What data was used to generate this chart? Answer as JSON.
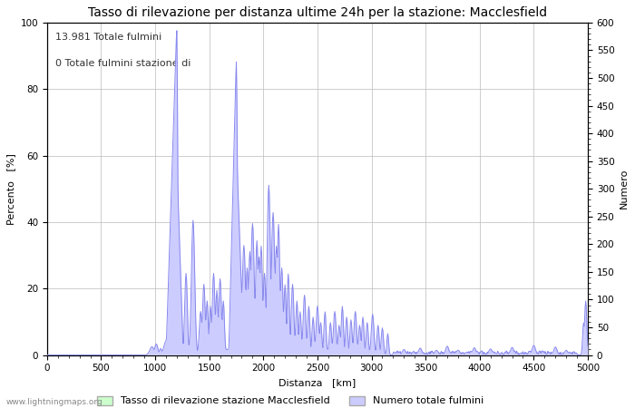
{
  "title": "Tasso di rilevazione per distanza ultime 24h per la stazione: Macclesfield",
  "xlabel": "Distanza   [km]",
  "ylabel_left": "Percento   [%]",
  "ylabel_right": "Numero",
  "annotation_line1": "13.981 Totale fulmini",
  "annotation_line2": "0 Totale fulmini stazione di",
  "xlim": [
    0,
    5000
  ],
  "ylim_left": [
    0,
    100
  ],
  "ylim_right": [
    0,
    600
  ],
  "xticks": [
    0,
    500,
    1000,
    1500,
    2000,
    2500,
    3000,
    3500,
    4000,
    4500,
    5000
  ],
  "yticks_left": [
    0,
    20,
    40,
    60,
    80,
    100
  ],
  "yticks_right": [
    0,
    50,
    100,
    150,
    200,
    250,
    300,
    350,
    400,
    450,
    500,
    550,
    600
  ],
  "legend_label_green": "Tasso di rilevazione stazione Macclesfield",
  "legend_label_blue": "Numero totale fulmini",
  "watermark": "www.lightningmaps.org",
  "line_color": "#8888ee",
  "fill_color_blue": "#ccccff",
  "fill_color_green": "#ccffcc",
  "background_color": "#ffffff",
  "grid_color": "#bbbbbb",
  "title_fontsize": 10,
  "label_fontsize": 8,
  "tick_fontsize": 7.5,
  "annotation_fontsize": 8,
  "figsize": [
    7.0,
    4.5
  ],
  "dpi": 100
}
